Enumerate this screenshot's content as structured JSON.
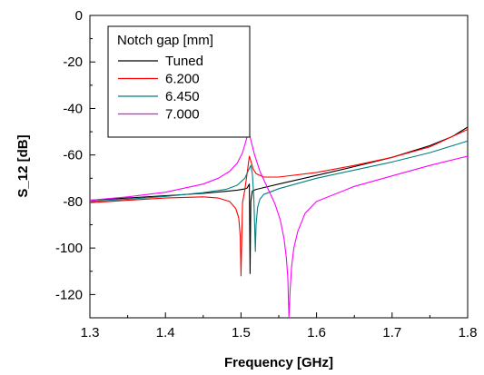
{
  "chart_data": {
    "type": "line",
    "xlabel": "Frequency [GHz]",
    "ylabel": "S_12 [dB]",
    "xlim": [
      1.3,
      1.8
    ],
    "ylim": [
      -130,
      0
    ],
    "xticks": [
      1.3,
      1.4,
      1.5,
      1.6,
      1.7,
      1.8
    ],
    "xtick_labels": [
      "1.3",
      "1.4",
      "1.5",
      "1.6",
      "1.7",
      "1.8"
    ],
    "yticks": [
      0,
      -20,
      -40,
      -60,
      -80,
      -100,
      -120
    ],
    "ytick_labels": [
      "0",
      "-20",
      "-40",
      "-60",
      "-80",
      "-100",
      "-120"
    ],
    "grid": false,
    "legend_position": "top-left",
    "legend_title": "Notch gap [mm]",
    "series": [
      {
        "name": "Tuned",
        "color": "#000000",
        "x": [
          1.3,
          1.35,
          1.4,
          1.45,
          1.48,
          1.495,
          1.505,
          1.508,
          1.511,
          1.512,
          1.513,
          1.515,
          1.52,
          1.53,
          1.55,
          1.6,
          1.65,
          1.7,
          1.75,
          1.78,
          1.8
        ],
        "y": [
          -79.5,
          -78.5,
          -77.5,
          -76.5,
          -75.6,
          -75.1,
          -74.6,
          -74.2,
          -72.5,
          -111,
          -80,
          -75.5,
          -74.8,
          -74.0,
          -72.5,
          -68.8,
          -65.0,
          -61.0,
          -56.0,
          -52.0,
          -48.0
        ]
      },
      {
        "name": "6.200",
        "color": "#ff0000",
        "x": [
          1.3,
          1.35,
          1.4,
          1.45,
          1.47,
          1.485,
          1.493,
          1.497,
          1.499,
          1.5,
          1.502,
          1.505,
          1.508,
          1.511,
          1.513,
          1.516,
          1.52,
          1.53,
          1.55,
          1.6,
          1.65,
          1.7,
          1.75,
          1.8
        ],
        "y": [
          -80.5,
          -79.5,
          -78.5,
          -78.0,
          -78.5,
          -80.0,
          -83.0,
          -87.0,
          -95.0,
          -112,
          -80.5,
          -75.0,
          -68.0,
          -60.5,
          -62.5,
          -66.0,
          -68.0,
          -69.5,
          -69.5,
          -67.5,
          -64.5,
          -61.0,
          -56.5,
          -49.0
        ]
      },
      {
        "name": "6.450",
        "color": "#008080",
        "x": [
          1.3,
          1.35,
          1.4,
          1.45,
          1.48,
          1.495,
          1.505,
          1.51,
          1.513,
          1.515,
          1.517,
          1.518,
          1.519,
          1.52,
          1.522,
          1.525,
          1.53,
          1.55,
          1.6,
          1.65,
          1.7,
          1.75,
          1.8
        ],
        "y": [
          -80.0,
          -79.0,
          -77.8,
          -76.2,
          -74.8,
          -73.0,
          -70.0,
          -66.5,
          -64.5,
          -68.0,
          -78.0,
          -90.0,
          -101.5,
          -90.0,
          -82.5,
          -79.0,
          -77.0,
          -74.5,
          -70.0,
          -66.5,
          -63.0,
          -59.0,
          -54.0
        ]
      },
      {
        "name": "7.000",
        "color": "#ff00ff",
        "x": [
          1.3,
          1.35,
          1.4,
          1.45,
          1.47,
          1.485,
          1.495,
          1.502,
          1.507,
          1.51,
          1.513,
          1.518,
          1.525,
          1.535,
          1.545,
          1.552,
          1.557,
          1.56,
          1.562,
          1.5635,
          1.565,
          1.567,
          1.57,
          1.575,
          1.585,
          1.6,
          1.65,
          1.7,
          1.75,
          1.8
        ],
        "y": [
          -79.5,
          -78.0,
          -76.0,
          -72.5,
          -70.0,
          -67.0,
          -63.5,
          -59.0,
          -53.5,
          -50.0,
          -53.5,
          -60.0,
          -67.0,
          -74.0,
          -81.0,
          -88.0,
          -96.0,
          -104.0,
          -113.0,
          -130.0,
          -118.0,
          -108.0,
          -100.0,
          -93.0,
          -85.0,
          -80.0,
          -73.5,
          -69.0,
          -64.5,
          -60.5
        ]
      }
    ]
  }
}
